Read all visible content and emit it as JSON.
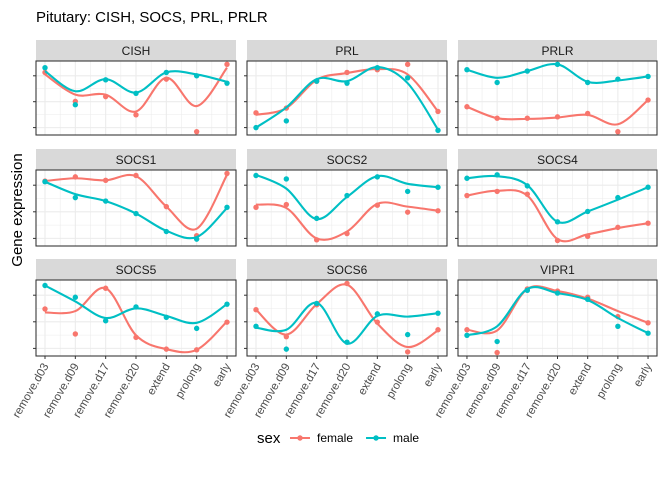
{
  "chart_data": {
    "type": "line",
    "title": "Pitutary: CISH, SOCS, PRL, PRLR",
    "ylabel": "Gene expression",
    "xlabel": "",
    "categories": [
      "remove.d03",
      "remove.d09",
      "remove.d17",
      "remove.d20",
      "extend",
      "prolong",
      "early"
    ],
    "legend": {
      "title": "sex",
      "position": "bottom"
    },
    "colors": {
      "female": "#F8766D",
      "male": "#00BFC4"
    },
    "grid": true,
    "y_tick_labels": "none",
    "panels": [
      {
        "name": "CISH",
        "series": [
          {
            "name": "female",
            "points": [
              0.88,
              0.45,
              0.52,
              0.25,
              0.78,
              0.0,
              1.0
            ],
            "line": [
              0.85,
              0.55,
              0.55,
              0.3,
              0.8,
              0.38,
              0.95
            ]
          },
          {
            "name": "male",
            "points": [
              0.95,
              0.4,
              0.77,
              0.57,
              0.88,
              0.83,
              0.72
            ],
            "line": [
              0.9,
              0.6,
              0.78,
              0.58,
              0.88,
              0.85,
              0.74
            ]
          }
        ]
      },
      {
        "name": "PRL",
        "series": [
          {
            "name": "female",
            "points": [
              0.28,
              0.35,
              0.75,
              0.88,
              0.92,
              1.0,
              0.3
            ],
            "line": [
              0.25,
              0.35,
              0.77,
              0.87,
              0.93,
              0.85,
              0.3
            ]
          },
          {
            "name": "male",
            "points": [
              0.06,
              0.16,
              0.75,
              0.72,
              0.95,
              0.8,
              0.02
            ],
            "line": [
              0.06,
              0.36,
              0.78,
              0.75,
              0.96,
              0.72,
              0.03
            ]
          }
        ]
      },
      {
        "name": "PRLR",
        "series": [
          {
            "name": "female",
            "points": [
              0.37,
              0.2,
              0.2,
              0.22,
              0.27,
              0.0,
              0.47
            ],
            "line": [
              0.37,
              0.2,
              0.19,
              0.21,
              0.25,
              0.11,
              0.47
            ]
          },
          {
            "name": "male",
            "points": [
              0.92,
              0.73,
              0.9,
              1.0,
              0.73,
              0.78,
              0.82
            ],
            "line": [
              0.92,
              0.8,
              0.9,
              1.0,
              0.74,
              0.76,
              0.82
            ]
          }
        ]
      },
      {
        "name": "SOCS1",
        "series": [
          {
            "name": "female",
            "points": [
              0.89,
              0.95,
              0.9,
              0.97,
              0.52,
              0.1,
              1.0
            ],
            "line": [
              0.89,
              0.93,
              0.9,
              0.96,
              0.52,
              0.2,
              0.98
            ]
          },
          {
            "name": "male",
            "points": [
              0.88,
              0.65,
              0.6,
              0.42,
              0.16,
              0.05,
              0.51
            ],
            "line": [
              0.88,
              0.7,
              0.6,
              0.42,
              0.17,
              0.08,
              0.5
            ]
          }
        ]
      },
      {
        "name": "SOCS2",
        "series": [
          {
            "name": "female",
            "points": [
              0.51,
              0.55,
              0.04,
              0.13,
              0.54,
              0.44,
              0.46
            ],
            "line": [
              0.55,
              0.5,
              0.06,
              0.16,
              0.56,
              0.52,
              0.46
            ]
          },
          {
            "name": "male",
            "points": [
              0.97,
              0.92,
              0.35,
              0.68,
              0.95,
              0.74,
              0.8
            ],
            "line": [
              0.98,
              0.78,
              0.34,
              0.66,
              0.96,
              0.85,
              0.8
            ]
          }
        ]
      },
      {
        "name": "SOCS4",
        "series": [
          {
            "name": "female",
            "points": [
              0.68,
              0.74,
              0.7,
              0.03,
              0.09,
              0.22,
              0.28
            ],
            "line": [
              0.68,
              0.75,
              0.68,
              0.05,
              0.12,
              0.21,
              0.28
            ]
          },
          {
            "name": "male",
            "points": [
              0.93,
              0.98,
              0.82,
              0.3,
              0.45,
              0.65,
              0.8
            ],
            "line": [
              0.93,
              0.96,
              0.83,
              0.3,
              0.45,
              0.62,
              0.8
            ]
          }
        ]
      },
      {
        "name": "SOCS5",
        "series": [
          {
            "name": "female",
            "points": [
              0.63,
              0.27,
              0.93,
              0.22,
              0.05,
              0.04,
              0.44
            ],
            "line": [
              0.58,
              0.6,
              0.93,
              0.25,
              0.05,
              0.04,
              0.45
            ]
          },
          {
            "name": "male",
            "points": [
              0.97,
              0.8,
              0.46,
              0.66,
              0.51,
              0.35,
              0.7
            ],
            "line": [
              0.97,
              0.74,
              0.5,
              0.64,
              0.53,
              0.43,
              0.7
            ]
          }
        ]
      },
      {
        "name": "SOCS6",
        "series": [
          {
            "name": "female",
            "points": [
              0.62,
              0.23,
              0.69,
              1.0,
              0.44,
              0.01,
              0.33
            ],
            "line": [
              0.62,
              0.26,
              0.7,
              0.98,
              0.42,
              0.08,
              0.32
            ]
          },
          {
            "name": "male",
            "points": [
              0.38,
              0.05,
              0.71,
              0.15,
              0.56,
              0.26,
              0.57
            ],
            "line": [
              0.36,
              0.33,
              0.72,
              0.13,
              0.53,
              0.52,
              0.57
            ]
          }
        ]
      },
      {
        "name": "VIPR1",
        "series": [
          {
            "name": "female",
            "points": [
              0.33,
              0.0,
              0.92,
              0.89,
              0.8,
              0.52,
              0.43
            ],
            "line": [
              0.33,
              0.32,
              0.92,
              0.89,
              0.78,
              0.6,
              0.43
            ]
          },
          {
            "name": "male",
            "points": [
              0.25,
              0.16,
              0.9,
              0.86,
              0.77,
              0.38,
              0.28
            ],
            "line": [
              0.25,
              0.38,
              0.92,
              0.86,
              0.76,
              0.5,
              0.28
            ]
          }
        ]
      }
    ]
  }
}
